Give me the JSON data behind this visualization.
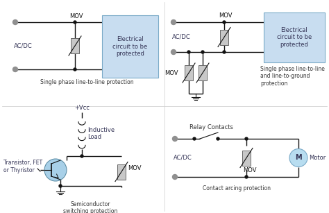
{
  "bg_color": "#ffffff",
  "box_fill": "#c8ddf0",
  "box_edge": "#7aaac8",
  "wire_color": "#000000",
  "mov_fill": "#c8c8c8",
  "mov_edge": "#666666",
  "dot_color_gray": "#909090",
  "motor_fill": "#b8ddf0",
  "motor_edge": "#7aaac8",
  "transistor_fill": "#a8d0e8",
  "transistor_edge": "#6090a8",
  "font_size_label": 6.0,
  "font_size_small": 5.5,
  "font_size_title": 5.5,
  "title1": "Single phase line-to-line protection",
  "title2": "Single phase line-to-line\nand line-to-ground\nprotection",
  "title3": "Semiconductor\nswitching protection",
  "title4": "Contact arcing protection",
  "label_acdc1": "AC/DC",
  "label_acdc2": "AC/DC",
  "label_acdc3": "AC/DC",
  "label_mov1": "MOV",
  "label_mov2": "MOV",
  "label_mov3": "MOV",
  "label_mov4": "MOV",
  "label_mov5": "MOV",
  "label_electrical": "Electrical\ncircuit to be\nprotected",
  "label_electrical2": "Electrical\ncircuit to be\nprotected",
  "label_inductive": "Inductive\nLoad",
  "label_vcc": "+Vcc",
  "label_transistor": "Transistor, FET\nor Thyristor",
  "label_relay": "Relay Contacts",
  "label_motor": "Motor"
}
